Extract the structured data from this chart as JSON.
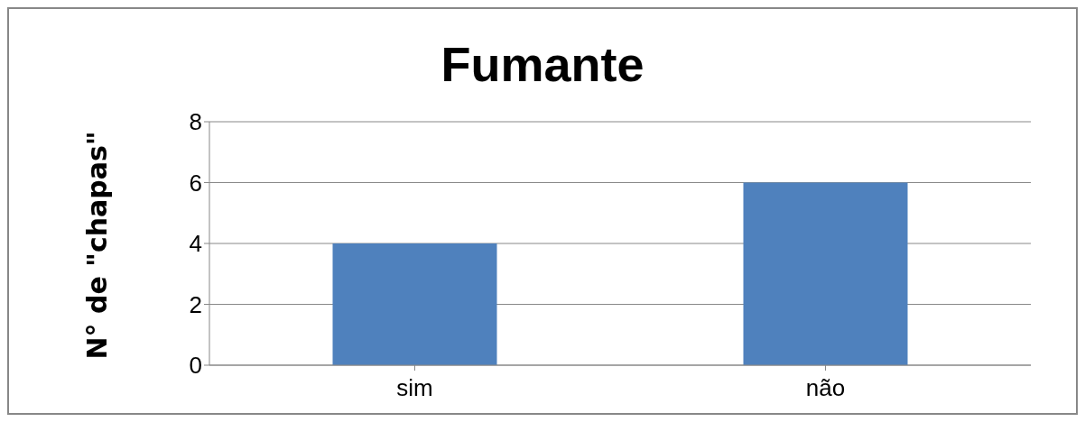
{
  "chart_data": {
    "type": "bar",
    "title": "Fumante",
    "ylabel": "N° de \"chapas\"",
    "categories": [
      "sim",
      "não"
    ],
    "values": [
      4,
      6
    ],
    "color": "#4f81bd",
    "ylim": [
      0,
      8
    ],
    "yticks": [
      0,
      2,
      4,
      6,
      8
    ],
    "grid": "y",
    "legend": false
  }
}
